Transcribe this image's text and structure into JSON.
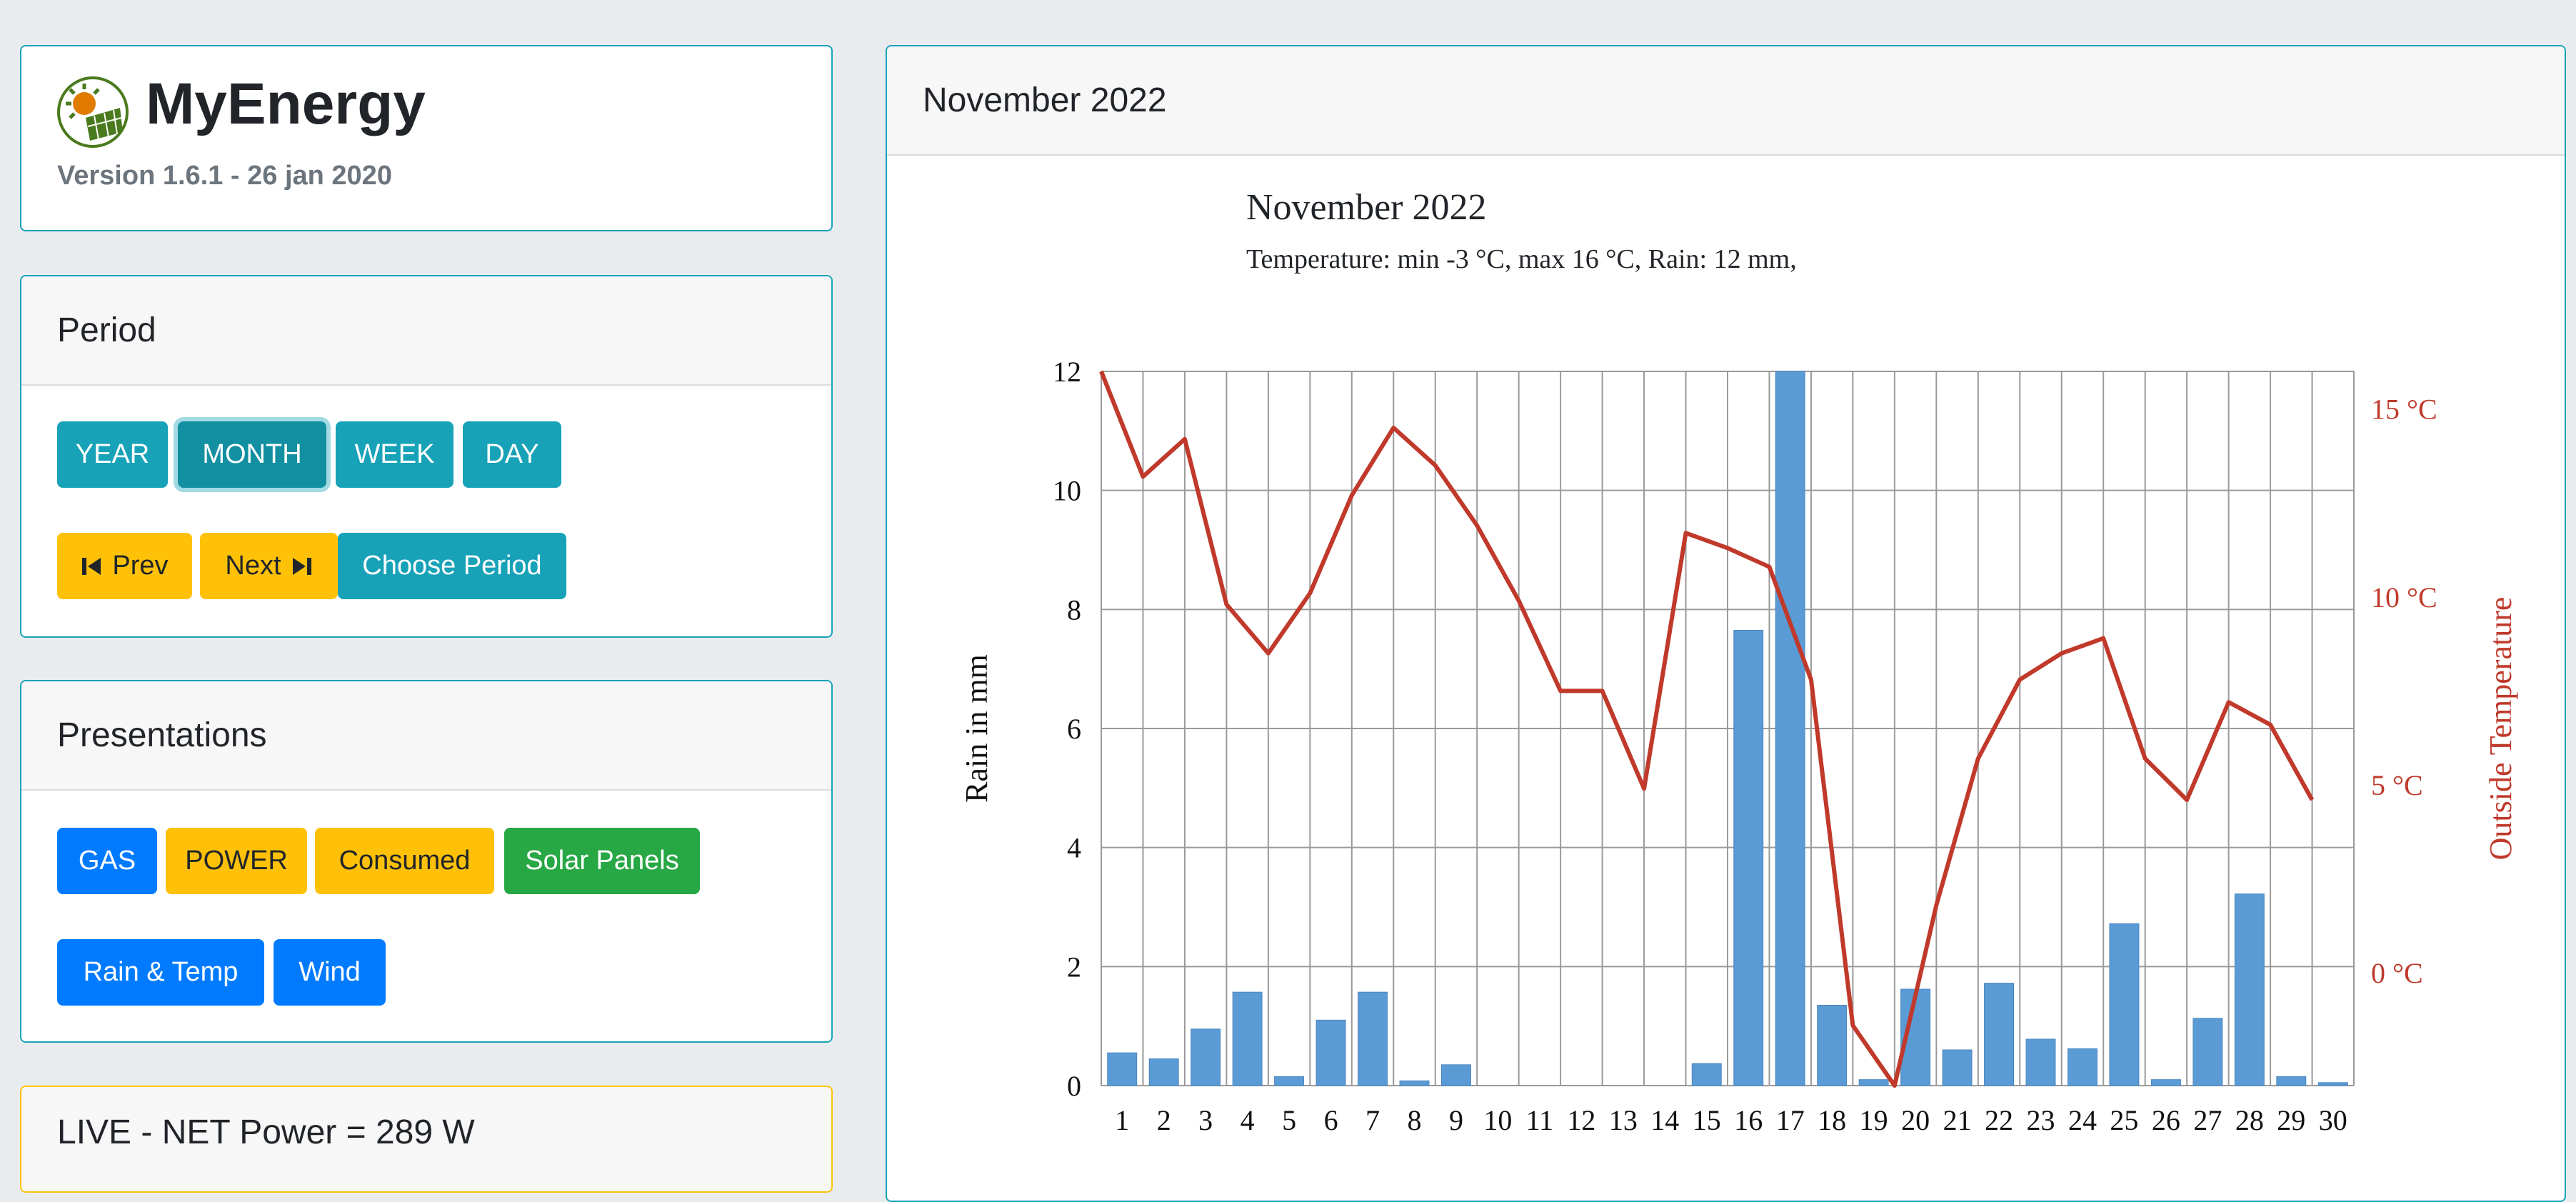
{
  "app": {
    "name": "MyEnergy",
    "version": "Version 1.6.1 - 26 jan 2020"
  },
  "period": {
    "title": "Period",
    "buttons": [
      "YEAR",
      "MONTH",
      "WEEK",
      "DAY"
    ],
    "active": "MONTH",
    "prev_label": "Prev",
    "next_label": "Next",
    "choose_label": "Choose Period"
  },
  "presentations": {
    "title": "Presentations",
    "buttons": [
      "GAS",
      "POWER",
      "Consumed",
      "Solar Panels",
      "Rain & Temp",
      "Wind"
    ]
  },
  "live": {
    "text": "LIVE - NET Power = 289 W"
  },
  "main": {
    "header": "November 2022"
  },
  "colors": {
    "info": "#17a2b8",
    "warning": "#ffc107",
    "primary": "#007bff",
    "success": "#28a745",
    "rain_bar": "#5b9bd5",
    "temp_line": "#c0392b"
  },
  "chart_data": {
    "type": "bar",
    "title": "November 2022",
    "subtitle": "Temperature: min -3 °C, max 16 °C, Rain: 12 mm,",
    "categories": [
      "1",
      "2",
      "3",
      "4",
      "5",
      "6",
      "7",
      "8",
      "9",
      "10",
      "11",
      "12",
      "13",
      "14",
      "15",
      "16",
      "17",
      "18",
      "19",
      "20",
      "21",
      "22",
      "23",
      "24",
      "25",
      "26",
      "27",
      "28",
      "29",
      "30"
    ],
    "ylabel": "Rain in mm",
    "ylabel_right": "Outside Temperature",
    "ylim": [
      0,
      12
    ],
    "yticks": [
      "0",
      "2",
      "4",
      "6",
      "8",
      "10",
      "12"
    ],
    "ylim_right": [
      -3,
      16
    ],
    "yticks_right": [
      "0 °C",
      "5 °C",
      "10 °C",
      "15 °C"
    ],
    "yticks_right_values": [
      0,
      5,
      10,
      15
    ],
    "grid": true,
    "series": [
      {
        "kind": "bar",
        "axis": "left",
        "values": [
          0.55,
          0.45,
          0.95,
          1.57,
          0.15,
          1.1,
          1.57,
          0.08,
          0.35,
          0,
          0,
          0,
          0,
          0,
          0.37,
          7.65,
          12.0,
          1.35,
          0.1,
          1.62,
          0.6,
          1.72,
          0.78,
          0.62,
          2.72,
          0.1,
          1.13,
          3.22,
          0.15,
          0.05
        ]
      },
      {
        "kind": "line",
        "axis": "right",
        "values": [
          16.0,
          13.2,
          14.2,
          9.8,
          8.5,
          10.1,
          12.7,
          14.5,
          13.5,
          11.9,
          9.9,
          7.5,
          7.5,
          4.9,
          11.7,
          11.3,
          10.8,
          7.8,
          -1.4,
          -3.0,
          1.8,
          5.7,
          7.8,
          8.5,
          8.9,
          5.7,
          4.6,
          7.2,
          6.6,
          4.6
        ]
      }
    ]
  }
}
